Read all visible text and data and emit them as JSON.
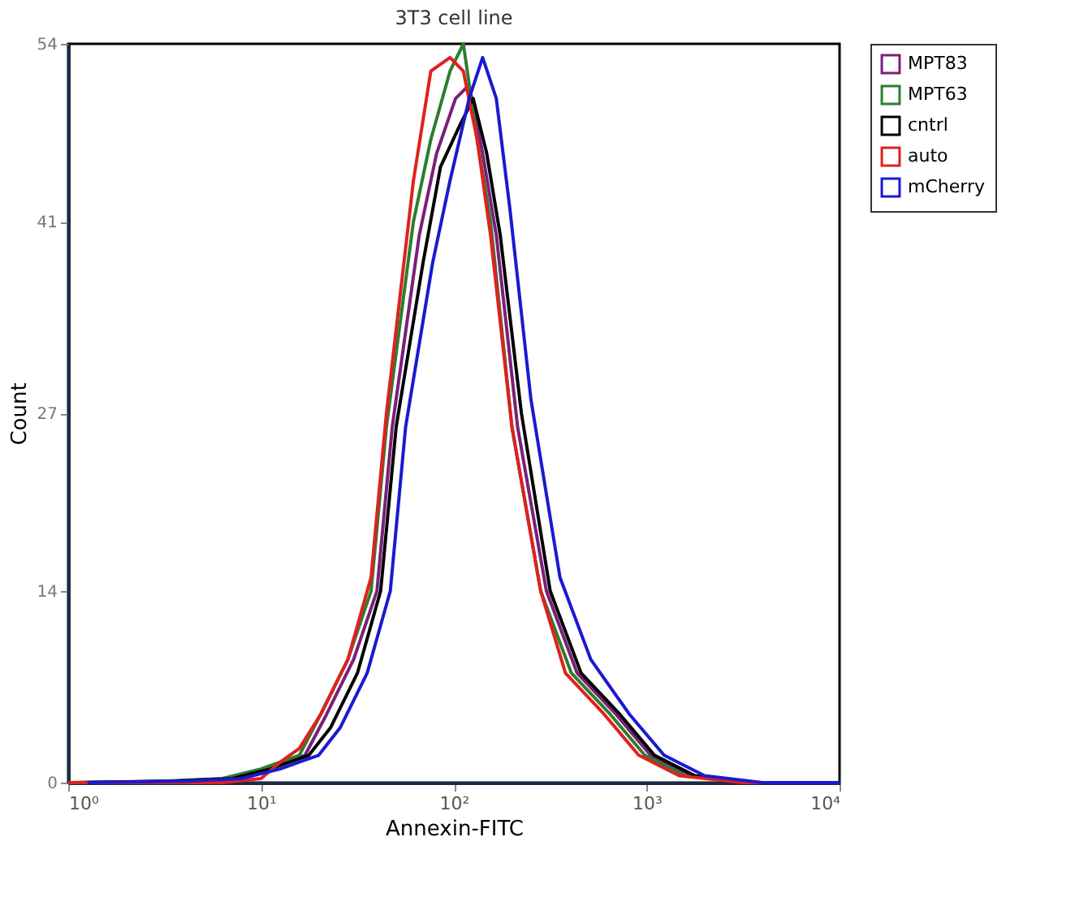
{
  "chart_data": {
    "type": "line",
    "title": "3T3 cell line",
    "xlabel": "Annexin-FITC",
    "ylabel": "Count",
    "log": "x",
    "xlim": [
      1,
      10000
    ],
    "xticks": [
      {
        "value": 1,
        "label": "10⁰"
      },
      {
        "value": 10,
        "label": "10¹"
      },
      {
        "value": 100,
        "label": "10²"
      },
      {
        "value": 1000,
        "label": "10³"
      },
      {
        "value": 10000,
        "label": "10⁴"
      }
    ],
    "ylim": [
      0,
      54
    ],
    "yticks": [
      0,
      14,
      27,
      41,
      54
    ],
    "grid": false,
    "legend": "right",
    "marker": "none",
    "line_style": "solid",
    "series": [
      {
        "name": "MPT83",
        "color": "#7b1f7b",
        "x": [
          1.07,
          3.39,
          6.8,
          10.7,
          13.5,
          16.9,
          21.9,
          30.2,
          39.9,
          47.9,
          66.1,
          81.4,
          102,
          120,
          141,
          166,
          214,
          302,
          436,
          692,
          1047,
          1698,
          3388,
          10000
        ],
        "values": [
          0,
          0.1,
          0.3,
          1,
          1.5,
          2,
          5,
          9,
          14,
          26,
          40,
          46,
          50,
          51,
          46,
          40,
          26,
          14,
          8,
          5,
          2,
          0.5,
          0,
          0
        ]
      },
      {
        "name": "MPT63",
        "color": "#2e7d2e",
        "x": [
          1,
          3.16,
          6.3,
          10,
          12.6,
          15.8,
          20.4,
          28.2,
          37.2,
          44.7,
          61.7,
          75.9,
          95.5,
          112,
          132,
          155,
          200,
          282,
          407,
          646,
          977,
          1585
        ],
        "values": [
          0,
          0.1,
          0.3,
          1,
          1.5,
          2,
          5,
          9,
          14,
          26,
          41,
          47,
          52,
          54,
          47,
          41,
          26,
          14,
          8,
          5,
          2,
          0.5
        ]
      },
      {
        "name": "cntrl",
        "color": "#000000",
        "x": [
          1.12,
          3.55,
          7.1,
          11.2,
          14.1,
          17.7,
          22.9,
          31.6,
          41.7,
          50.2,
          69.2,
          85.2,
          107,
          126,
          148,
          174,
          224,
          316,
          457,
          725,
          1096,
          1778,
          3548,
          10000
        ],
        "values": [
          0,
          0.1,
          0.3,
          1,
          1.5,
          2,
          4,
          8,
          14,
          26,
          38,
          45,
          48,
          50,
          46,
          40,
          27,
          14,
          8,
          5,
          2,
          0.5,
          0,
          0
        ]
      },
      {
        "name": "auto",
        "color": "#e02020",
        "x": [
          1,
          3.16,
          6.3,
          10,
          12.6,
          15.8,
          20.4,
          28.2,
          37.2,
          44.7,
          61.7,
          75.9,
          95.5,
          112,
          132,
          155,
          200,
          282,
          379,
          601,
          909,
          1474,
          3162,
          10000
        ],
        "values": [
          0,
          0,
          0,
          0.3,
          1.5,
          2.5,
          5,
          9,
          15,
          27,
          44,
          52,
          53,
          52,
          47,
          40,
          26,
          14,
          8,
          5,
          2,
          0.5,
          0,
          0
        ]
      },
      {
        "name": "mCherry",
        "color": "#1a1ad0",
        "x": [
          1.26,
          3.98,
          7.9,
          12.6,
          15.8,
          19.9,
          25.7,
          35.5,
          46.8,
          56.2,
          77.6,
          95.5,
          120,
          141,
          166,
          195,
          251,
          355,
          513,
          813,
          1230,
          1995,
          3981,
          10000
        ],
        "values": [
          0,
          0.1,
          0.3,
          1,
          1.5,
          2,
          4,
          8,
          14,
          26,
          38,
          44,
          50,
          53,
          50,
          42,
          28,
          15,
          9,
          5,
          2,
          0.5,
          0,
          0
        ]
      }
    ]
  }
}
